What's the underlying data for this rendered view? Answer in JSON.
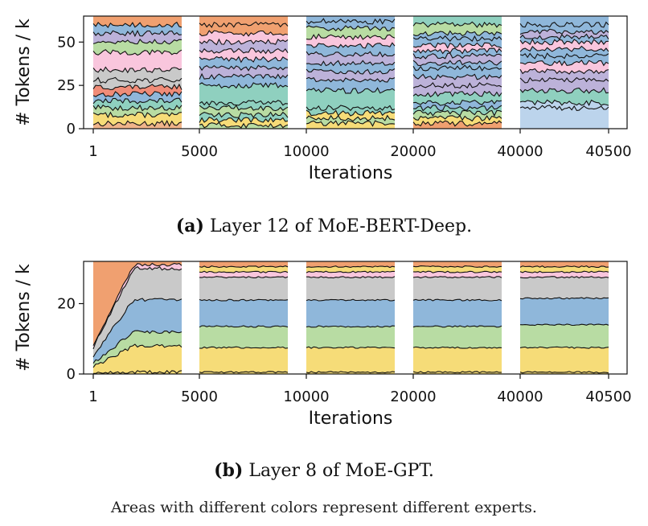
{
  "chart_data": [
    {
      "type": "area",
      "caption_tag": "(a)",
      "caption_text": "Layer 12 of MoE-BERT-Deep.",
      "xlabel": "Iterations",
      "ylabel": "# Tokens / k",
      "ylim": [
        0,
        65
      ],
      "yticks": [
        0,
        25,
        50
      ],
      "grid": false,
      "legend": "none",
      "segments": [
        {
          "start_label": "1",
          "end_label": "5000",
          "top": 65,
          "lines": [
            3,
            8,
            12,
            16,
            20,
            24,
            28,
            34,
            44,
            50,
            55,
            60
          ],
          "fills": [
            "#f0b48a",
            "#f6dc78",
            "#b8dca3",
            "#8fd0bf",
            "#8fb7da",
            "#f08c78",
            "#c9c9c9",
            "#c9c9c9",
            "#f9c6dd",
            "#b8dca3",
            "#bcb2d9",
            "#8fb7da",
            "#f0a070"
          ]
        },
        {
          "start_label": "5000",
          "end_label": "10000",
          "top": 65,
          "lines": [
            2,
            5,
            8,
            12,
            15,
            25,
            30,
            35,
            40,
            45,
            50,
            55,
            60
          ],
          "fills": [
            "#b8dca3",
            "#f6dc78",
            "#8fd0bf",
            "#b8dca3",
            "#8fd0bf",
            "#8fd0bf",
            "#8fb7da",
            "#bcb2d9",
            "#8fb7da",
            "#f9c6dd",
            "#bcb2d9",
            "#f9c6dd",
            "#f0a070",
            "#f0a070"
          ]
        },
        {
          "start_label": "10000",
          "end_label": "20000",
          "top": 65,
          "lines": [
            3,
            6,
            9,
            12,
            22,
            28,
            33,
            38,
            43,
            48,
            53,
            58,
            62
          ],
          "fills": [
            "#f6dc78",
            "#b8dca3",
            "#f6dc78",
            "#8fd0bf",
            "#8fd0bf",
            "#8fb7da",
            "#bcb2d9",
            "#8fb7da",
            "#bcb2d9",
            "#8fb7da",
            "#f9c6dd",
            "#b8dca3",
            "#8fb7da",
            "#8fb7da"
          ]
        },
        {
          "start_label": "20000",
          "end_label": "40000",
          "top": 65,
          "lines": [
            3,
            6,
            9,
            12,
            15,
            20,
            25,
            30,
            35,
            38,
            42,
            45,
            48,
            52,
            55,
            60
          ],
          "fills": [
            "#f0a070",
            "#f6dc78",
            "#b8dca3",
            "#8fd0bf",
            "#8fb7da",
            "#8fd0bf",
            "#bcb2d9",
            "#bcb2d9",
            "#8fb7da",
            "#8fb7da",
            "#bcb2d9",
            "#8fb7da",
            "#f9c6dd",
            "#8fb7da",
            "#8fb7da",
            "#b8dca3",
            "#8fd0bf"
          ]
        },
        {
          "start_label": "40000",
          "end_label": "40500",
          "top": 65,
          "lines": [
            12,
            15,
            22,
            28,
            33,
            38,
            42,
            46,
            50,
            53,
            56,
            60
          ],
          "fills": [
            "#bcd4ec",
            "#bcd4ec",
            "#8fd0bf",
            "#bcb2d9",
            "#bcb2d9",
            "#f9c6dd",
            "#8fb7da",
            "#8fb7da",
            "#f9c6dd",
            "#8fb7da",
            "#bcb2d9",
            "#8fb7da",
            "#8fb7da"
          ]
        }
      ]
    },
    {
      "type": "area",
      "caption_tag": "(b)",
      "caption_text": "Layer 8 of MoE-GPT.",
      "xlabel": "Iterations",
      "ylabel": "# Tokens / k",
      "ylim": [
        0,
        32
      ],
      "yticks": [
        0,
        20
      ],
      "grid": false,
      "legend": "none",
      "segments": [
        {
          "start_label": "1",
          "end_label": "5000",
          "top": 32,
          "lines": [
            0.5,
            8,
            12,
            21,
            30,
            31
          ],
          "fills": [
            "#f6dc78",
            "#f6dc78",
            "#b8dca3",
            "#8fb7da",
            "#c9c9c9",
            "#f9c6dd",
            "#f0a070"
          ]
        },
        {
          "start_label": "5000",
          "end_label": "10000",
          "top": 32,
          "lines": [
            0.5,
            7.5,
            13.5,
            21,
            27.5,
            29,
            30.5
          ],
          "fills": [
            "#f6dc78",
            "#f6dc78",
            "#b8dca3",
            "#8fb7da",
            "#c9c9c9",
            "#f9c6dd",
            "#f6dc78",
            "#f0a070"
          ]
        },
        {
          "start_label": "10000",
          "end_label": "20000",
          "top": 32,
          "lines": [
            0.5,
            7.5,
            13.5,
            21,
            27.5,
            29,
            30.5
          ],
          "fills": [
            "#f6dc78",
            "#f6dc78",
            "#b8dca3",
            "#8fb7da",
            "#c9c9c9",
            "#f9c6dd",
            "#f6dc78",
            "#f0a070"
          ]
        },
        {
          "start_label": "20000",
          "end_label": "40000",
          "top": 32,
          "lines": [
            0.5,
            7.5,
            13.5,
            21,
            27.5,
            29,
            30.5
          ],
          "fills": [
            "#f6dc78",
            "#f6dc78",
            "#b8dca3",
            "#8fb7da",
            "#c9c9c9",
            "#f9c6dd",
            "#f6dc78",
            "#f0a070"
          ]
        },
        {
          "start_label": "40000",
          "end_label": "40500",
          "top": 32,
          "lines": [
            0.5,
            7.5,
            14,
            21.5,
            27.5,
            29,
            30.5
          ],
          "fills": [
            "#f6dc78",
            "#f6dc78",
            "#b8dca3",
            "#8fb7da",
            "#c9c9c9",
            "#f9c6dd",
            "#f6dc78",
            "#f0a070"
          ]
        }
      ]
    }
  ],
  "footnote": "Areas with different colors represent different experts."
}
